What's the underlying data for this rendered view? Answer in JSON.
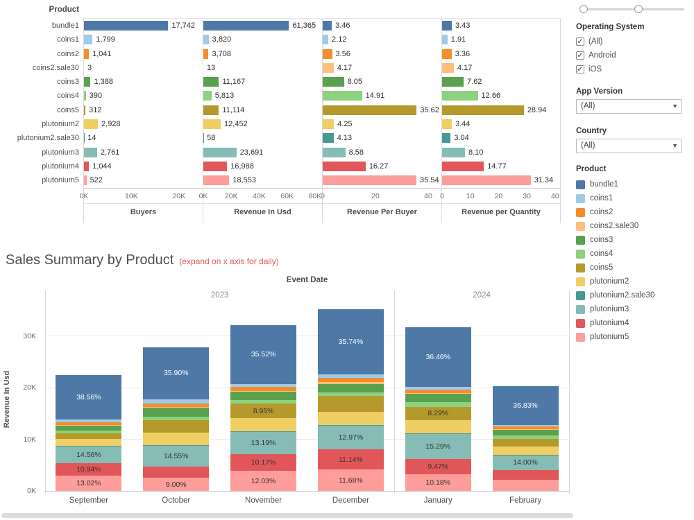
{
  "palette": {
    "bundle1": "#4e79a7",
    "coins1": "#a0cbe8",
    "coins2": "#f28e2b",
    "coins2.sale30": "#ffbe7d",
    "coins3": "#59a14f",
    "coins4": "#8cd17d",
    "coins5": "#b6992d",
    "plutonium2": "#f1ce63",
    "plutonium2.sale30": "#499894",
    "plutonium3": "#86bcb6",
    "plutonium4": "#e15759",
    "plutonium5": "#ff9d9a"
  },
  "chart_data": [
    {
      "type": "bar",
      "orientation": "horizontal",
      "header": "Product",
      "categories": [
        "bundle1",
        "coins1",
        "coins2",
        "coins2.sale30",
        "coins3",
        "coins4",
        "coins5",
        "plutonium2",
        "plutonium2.sale30",
        "plutonium3",
        "plutonium4",
        "plutonium5"
      ],
      "series": [
        {
          "name": "Buyers",
          "axis_max": 25000,
          "ticks": [
            {
              "label": "0K",
              "val": 0
            },
            {
              "label": "10K",
              "val": 10000
            },
            {
              "label": "20K",
              "val": 20000
            }
          ],
          "values": [
            17742,
            1799,
            1041,
            3,
            1388,
            390,
            312,
            2928,
            14,
            2761,
            1044,
            522
          ],
          "labels": [
            "17,742",
            "1,799",
            "1,041",
            "3",
            "1,388",
            "390",
            "312",
            "2,928",
            "14",
            "2,761",
            "1,044",
            "522"
          ]
        },
        {
          "name": "Revenue In Usd",
          "axis_max": 85000,
          "ticks": [
            {
              "label": "0K",
              "val": 0
            },
            {
              "label": "20K",
              "val": 20000
            },
            {
              "label": "40K",
              "val": 40000
            },
            {
              "label": "60K",
              "val": 60000
            },
            {
              "label": "80K",
              "val": 80000
            }
          ],
          "values": [
            61365,
            3820,
            3708,
            13,
            11167,
            5813,
            11114,
            12452,
            58,
            23691,
            16988,
            18553
          ],
          "labels": [
            "61,365",
            "3,820",
            "3,708",
            "13",
            "11,167",
            "5,813",
            "11,114",
            "12,452",
            "58",
            "23,691",
            "16,988",
            "18,553"
          ]
        },
        {
          "name": "Revenue Per Buyer",
          "axis_max": 45,
          "ticks": [
            {
              "label": "0",
              "val": 0
            },
            {
              "label": "20",
              "val": 20
            },
            {
              "label": "40",
              "val": 40
            }
          ],
          "values": [
            3.46,
            2.12,
            3.56,
            4.17,
            8.05,
            14.91,
            35.62,
            4.25,
            4.13,
            8.58,
            16.27,
            35.54
          ],
          "labels": [
            "3.46",
            "2.12",
            "3.56",
            "4.17",
            "8.05",
            "14.91",
            "35.62",
            "4.25",
            "4.13",
            "8.58",
            "16.27",
            "35.54"
          ]
        },
        {
          "name": "Revenue per Quantity",
          "axis_max": 42,
          "ticks": [
            {
              "label": "0",
              "val": 0
            },
            {
              "label": "10",
              "val": 10
            },
            {
              "label": "20",
              "val": 20
            },
            {
              "label": "30",
              "val": 30
            },
            {
              "label": "40",
              "val": 40
            }
          ],
          "values": [
            3.43,
            1.91,
            3.36,
            4.17,
            7.62,
            12.66,
            28.94,
            3.44,
            3.04,
            8.1,
            14.77,
            31.34
          ],
          "labels": [
            "3.43",
            "1.91",
            "3.36",
            "4.17",
            "7.62",
            "12.66",
            "28.94",
            "3.44",
            "3.04",
            "8.10",
            "14.77",
            "31.34"
          ]
        }
      ]
    },
    {
      "type": "bar",
      "stacked": true,
      "title": "Sales Summary by Product",
      "subtitle": "(expand on x axis for daily)",
      "subtitle_color": "#e05353",
      "xlabel": "Event Date",
      "ylabel": "Revenue In Usd",
      "ylim_k": [
        0,
        35.5
      ],
      "yticks": [
        {
          "label": "0K",
          "val": 0
        },
        {
          "label": "10K",
          "val": 10
        },
        {
          "label": "20K",
          "val": 20
        },
        {
          "label": "30K",
          "val": 30
        }
      ],
      "groups": [
        {
          "year": "2023",
          "months": [
            "September",
            "October",
            "November",
            "December"
          ]
        },
        {
          "year": "2024",
          "months": [
            "January",
            "February"
          ]
        }
      ],
      "stack_order": [
        "plutonium5",
        "plutonium4",
        "plutonium3",
        "plutonium2.sale30",
        "plutonium2",
        "coins5",
        "coins4",
        "coins3",
        "coins2.sale30",
        "coins2",
        "coins1",
        "bundle1"
      ],
      "bars": [
        {
          "month": "September",
          "total_k": 22.5,
          "shares": {
            "bundle1": 38.56,
            "coins1": 2.46,
            "coins2": 2.0,
            "coins2.sale30": 0.2,
            "coins3": 5.0,
            "coins4": 2.0,
            "coins5": 5.0,
            "plutonium2": 6.0,
            "plutonium2.sale30": 0.26,
            "plutonium3": 14.56,
            "plutonium4": 10.94,
            "plutonium5": 13.02
          },
          "labels": {
            "bundle1": "38.56%",
            "plutonium3": "14.56%",
            "plutonium4": "10.94%",
            "plutonium5": "13.02%"
          }
        },
        {
          "month": "October",
          "total_k": 27.8,
          "shares": {
            "bundle1": 35.9,
            "coins1": 3.05,
            "coins2": 2.5,
            "coins2.sale30": 0.2,
            "coins3": 6.5,
            "coins4": 2.5,
            "coins5": 8.5,
            "plutonium2": 9.0,
            "plutonium2.sale30": 0.3,
            "plutonium3": 14.55,
            "plutonium4": 8.0,
            "plutonium5": 9.0
          },
          "labels": {
            "bundle1": "35.90%",
            "plutonium3": "14.55%",
            "plutonium5": "9.00%"
          }
        },
        {
          "month": "November",
          "total_k": 32.2,
          "shares": {
            "bundle1": 35.52,
            "coins1": 2.0,
            "coins2": 2.2,
            "coins2.sale30": 0.6,
            "coins3": 5.0,
            "coins4": 2.0,
            "coins5": 8.95,
            "plutonium2": 8.0,
            "plutonium2.sale30": 0.34,
            "plutonium3": 13.19,
            "plutonium4": 10.17,
            "plutonium5": 12.03
          },
          "labels": {
            "bundle1": "35.52%",
            "coins5": "8.95%",
            "plutonium3": "13.19%",
            "plutonium4": "10.17%",
            "plutonium5": "12.03%"
          }
        },
        {
          "month": "December",
          "total_k": 35.2,
          "shares": {
            "bundle1": 35.74,
            "coins1": 1.8,
            "coins2": 2.5,
            "coins2.sale30": 1.0,
            "coins3": 4.5,
            "coins4": 2.0,
            "coins5": 8.8,
            "plutonium2": 7.5,
            "plutonium2.sale30": 0.37,
            "plutonium3": 12.97,
            "plutonium4": 11.14,
            "plutonium5": 11.68
          },
          "labels": {
            "bundle1": "35.74%",
            "plutonium3": "12.97%",
            "plutonium4": "11.14%",
            "plutonium5": "11.68%"
          }
        },
        {
          "month": "January",
          "total_k": 31.7,
          "shares": {
            "bundle1": 36.46,
            "coins1": 1.5,
            "coins2": 2.0,
            "coins2.sale30": 0.5,
            "coins3": 5.0,
            "coins4": 3.0,
            "coins5": 8.29,
            "plutonium2": 8.0,
            "plutonium2.sale30": 0.31,
            "plutonium3": 15.29,
            "plutonium4": 9.47,
            "plutonium5": 10.18
          },
          "labels": {
            "bundle1": "36.46%",
            "coins5": "8.29%",
            "plutonium3": "15.29%",
            "plutonium4": "9.47%",
            "plutonium5": "10.18%"
          }
        },
        {
          "month": "February",
          "total_k": 20.3,
          "shares": {
            "bundle1": 36.83,
            "coins1": 1.5,
            "coins2": 2.5,
            "coins2.sale30": 1.0,
            "coins3": 5.0,
            "coins4": 3.5,
            "coins5": 7.5,
            "plutonium2": 8.0,
            "plutonium2.sale30": 0.3,
            "plutonium3": 14.0,
            "plutonium4": 9.0,
            "plutonium5": 10.87
          },
          "labels": {
            "bundle1": "36.83%",
            "plutonium3": "14.00%"
          }
        }
      ]
    }
  ],
  "sidebar": {
    "operating_system": {
      "title": "Operating System",
      "options": [
        {
          "label": "(All)",
          "checked": true
        },
        {
          "label": "Android",
          "checked": true
        },
        {
          "label": "iOS",
          "checked": true
        }
      ]
    },
    "app_version": {
      "title": "App Version",
      "value": "(All)"
    },
    "country": {
      "title": "Country",
      "value": "(All)"
    },
    "legend": {
      "title": "Product",
      "items": [
        "bundle1",
        "coins1",
        "coins2",
        "coins2.sale30",
        "coins3",
        "coins4",
        "coins5",
        "plutonium2",
        "plutonium2.sale30",
        "plutonium3",
        "plutonium4",
        "plutonium5"
      ]
    }
  }
}
